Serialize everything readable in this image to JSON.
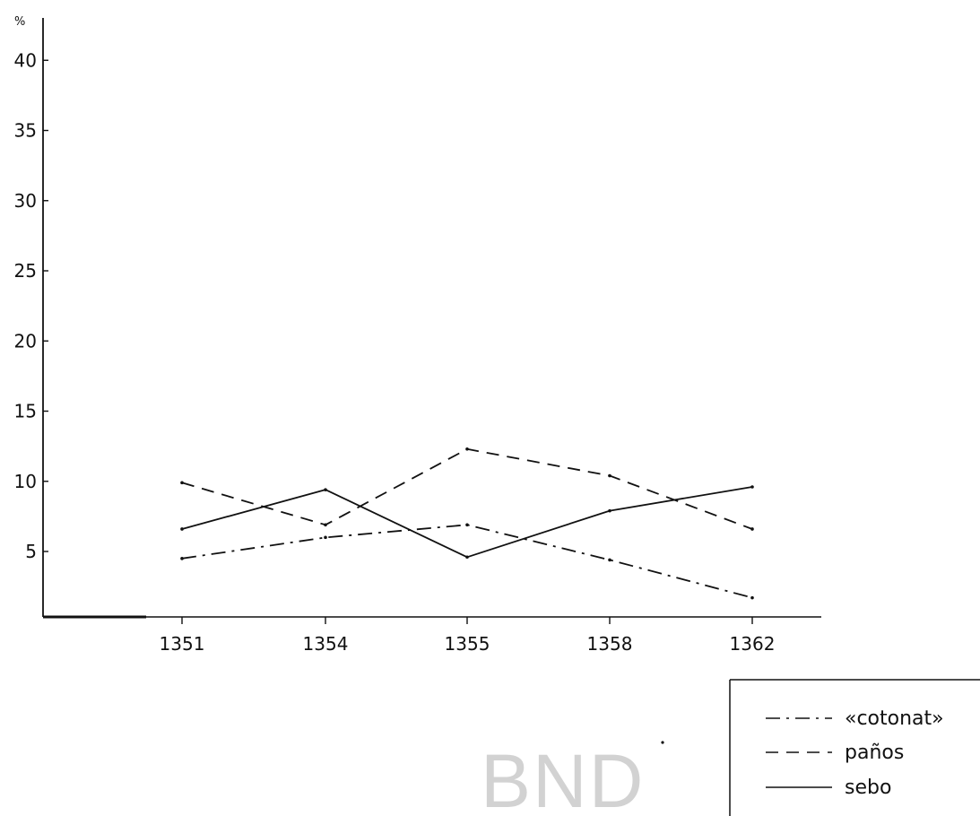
{
  "chart_data": {
    "type": "line",
    "categories": [
      "1351",
      "1354",
      "1355",
      "1358",
      "1362"
    ],
    "y_unit": "%",
    "y_ticks": [
      5,
      10,
      15,
      20,
      25,
      30,
      35,
      40
    ],
    "ylim": [
      0,
      41
    ],
    "grid": false,
    "legend_position": "bottom-right",
    "series": [
      {
        "name": "«cotonat»",
        "style": "dash-dot",
        "values": [
          4.5,
          6.0,
          6.9,
          4.4,
          1.7
        ]
      },
      {
        "name": "paños",
        "style": "dashed",
        "values": [
          9.9,
          6.9,
          12.3,
          10.4,
          6.6
        ]
      },
      {
        "name": "sebo",
        "style": "solid",
        "values": [
          6.6,
          9.4,
          4.6,
          7.9,
          9.6
        ]
      }
    ]
  },
  "watermark": "BND",
  "colors": {
    "ink": "#111111",
    "watermark": "#d2d2d2",
    "background": "#ffffff"
  }
}
